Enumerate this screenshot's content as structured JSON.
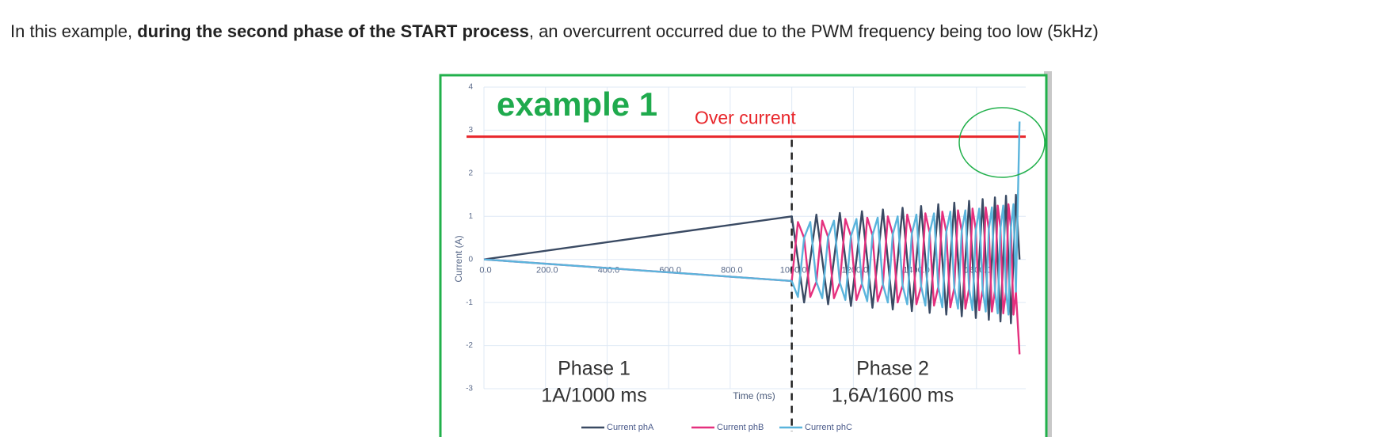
{
  "paragraph": {
    "before": "In this example, ",
    "bold": "during the second phase of the START process",
    "after": ", an overcurrent occurred due to the PWM frequency being too low (5kHz)"
  },
  "chart_data": {
    "type": "line",
    "title": "example 1",
    "x_label": "Time (ms)",
    "y_label": "Current (A)",
    "xlim": [
      0,
      1760
    ],
    "ylim": [
      -3,
      4
    ],
    "xticks": [
      {
        "value": 0,
        "label": "0.0"
      },
      {
        "value": 200,
        "label": "200.0"
      },
      {
        "value": 400,
        "label": "400.0"
      },
      {
        "value": 600,
        "label": "600.0"
      },
      {
        "value": 800,
        "label": "800.0"
      },
      {
        "value": 1000,
        "label": "1000.0"
      },
      {
        "value": 1200,
        "label": "1200.0"
      },
      {
        "value": 1400,
        "label": "1400.0"
      },
      {
        "value": 1600,
        "label": "1600.0"
      }
    ],
    "yticks": [
      -3,
      -2,
      -1,
      0,
      1,
      2,
      3,
      4
    ],
    "grid": true,
    "threshold": {
      "value": 2.85,
      "label": "Over current",
      "color": "#e8262b"
    },
    "phase_boundary": 1000,
    "phases": [
      {
        "name": "Phase 1",
        "detail": "1A/1000 ms"
      },
      {
        "name": "Phase 2",
        "detail": "1,6A/1600 ms"
      }
    ],
    "x": [
      0,
      1000,
      1020,
      1040,
      1060,
      1080,
      1099,
      1118,
      1137,
      1156,
      1174,
      1192,
      1210,
      1228,
      1245,
      1262,
      1279,
      1296,
      1312,
      1328,
      1344,
      1360,
      1375,
      1390,
      1405,
      1420,
      1434,
      1448,
      1462,
      1476,
      1489,
      1502,
      1515,
      1528,
      1540,
      1552,
      1564,
      1576,
      1587,
      1598,
      1609,
      1620,
      1630,
      1640,
      1650,
      1660,
      1669,
      1678,
      1687,
      1696,
      1704,
      1712,
      1720,
      1728,
      1740
    ],
    "series": [
      {
        "name": "Current phA",
        "color": "#3a4a63",
        "values": [
          0,
          1,
          0,
          -1,
          0,
          1.04,
          0,
          -1.04,
          0,
          1.08,
          0,
          -1.08,
          0,
          1.12,
          0,
          -1.12,
          0,
          1.16,
          0,
          -1.16,
          0,
          1.2,
          0,
          -1.2,
          0,
          1.24,
          0,
          -1.24,
          0,
          1.28,
          0,
          -1.28,
          0,
          1.32,
          0,
          -1.32,
          0,
          1.36,
          0,
          -1.36,
          0,
          1.4,
          0,
          -1.4,
          0,
          1.44,
          0,
          -1.44,
          0,
          1.48,
          0,
          -1.48,
          0,
          1.5,
          0
        ]
      },
      {
        "name": "Current phB",
        "color": "#e5307e",
        "values": [
          0,
          -0.5,
          0.87,
          0.5,
          -0.87,
          -0.52,
          0.9,
          0.52,
          -0.9,
          -0.54,
          0.94,
          0.54,
          -0.94,
          -0.56,
          0.97,
          0.56,
          -0.97,
          -0.58,
          1.0,
          0.58,
          -1.0,
          -0.6,
          1.04,
          0.6,
          -1.04,
          -0.62,
          1.07,
          0.62,
          -1.07,
          -0.64,
          1.11,
          0.64,
          -1.11,
          -0.66,
          1.14,
          0.66,
          -1.14,
          -0.68,
          1.18,
          0.68,
          -1.18,
          -0.7,
          1.21,
          0.7,
          -1.21,
          -0.72,
          1.25,
          0.72,
          -1.25,
          -0.74,
          1.28,
          0.74,
          -1.28,
          -0.75,
          -2.2
        ]
      },
      {
        "name": "Current phC",
        "color": "#5ab4dc",
        "values": [
          0,
          -0.5,
          -0.87,
          0.5,
          0.87,
          -0.52,
          -0.9,
          0.52,
          0.9,
          -0.54,
          -0.94,
          0.54,
          0.94,
          -0.56,
          -0.97,
          0.56,
          0.97,
          -0.58,
          -1.0,
          0.58,
          1.0,
          -0.6,
          -1.04,
          0.6,
          1.04,
          -0.62,
          -1.07,
          0.62,
          1.07,
          -0.64,
          -1.11,
          0.64,
          1.11,
          -0.66,
          -1.14,
          0.66,
          1.14,
          -0.68,
          -1.18,
          0.68,
          1.18,
          -0.7,
          -1.21,
          0.7,
          1.21,
          -0.72,
          -1.25,
          0.72,
          1.25,
          -0.74,
          -1.28,
          0.74,
          1.28,
          -0.75,
          3.2
        ]
      }
    ]
  }
}
